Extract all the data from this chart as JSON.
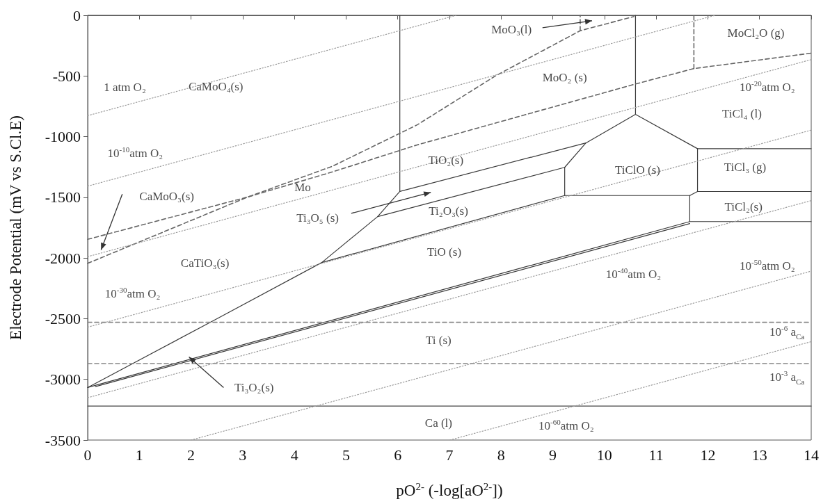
{
  "chart_data": {
    "type": "line",
    "xlabel": "pO$^{2-}$ (-log[aO$^{2-}$])",
    "ylabel": "Electrode Potential (mV vs S.Cl.E)",
    "xlim": [
      0,
      14
    ],
    "xticks": [
      0,
      1,
      2,
      3,
      4,
      5,
      6,
      7,
      8,
      9,
      10,
      11,
      12,
      13,
      14
    ],
    "ylim": [
      -3500,
      0
    ],
    "yticks": [
      -3500,
      -3000,
      -2500,
      -2000,
      -1500,
      -1000,
      -500,
      0
    ],
    "grid": false,
    "marker": "none",
    "series": [
      {
        "color": "#3a3a3a",
        "line_style": "solid",
        "x": [
          6.04,
          6.04
        ],
        "values": [
          0,
          -1451
        ]
      },
      {
        "color": "#3b3b3b",
        "line_style": "solid",
        "x": [
          0,
          2.42,
          4.53,
          5.61,
          6.04
        ],
        "values": [
          -3067,
          -2519,
          -2037,
          -1659,
          -1451
        ]
      },
      {
        "color": "#3a3a3a",
        "line_style": "solid",
        "x": [
          4.53,
          9.23,
          11.65,
          11.8
        ],
        "values": [
          -2037,
          -1485,
          -1485,
          -1452
        ]
      },
      {
        "color": "#3a3a3a",
        "line_style": "solid",
        "x": [
          5.61,
          9.23
        ],
        "values": [
          -1659,
          -1253
        ]
      },
      {
        "color": "#3a3a3a",
        "line_style": "solid",
        "x": [
          6.04,
          9.64
        ],
        "values": [
          -1451,
          -1052
        ]
      },
      {
        "color": "#3a3a3a",
        "line_style": "solid",
        "x": [
          9.23,
          9.23
        ],
        "values": [
          -1485,
          -1253
        ]
      },
      {
        "color": "#3a3a3a",
        "line_style": "solid",
        "x": [
          9.23,
          9.64,
          10.6,
          11.8
        ],
        "values": [
          -1253,
          -1052,
          -816,
          -1099
        ]
      },
      {
        "color": "#3a3a3a",
        "line_style": "solid",
        "x": [
          11.8,
          11.8
        ],
        "values": [
          -1099,
          -1452
        ]
      },
      {
        "color": "#3a3a3a",
        "line_style": "solid",
        "x": [
          10.6,
          10.6
        ],
        "values": [
          0,
          -816
        ]
      },
      {
        "color": "#3a3a3a",
        "line_style": "solid",
        "x": [
          11.8,
          14
        ],
        "values": [
          -1099,
          -1099
        ]
      },
      {
        "color": "#3a3a3a",
        "line_style": "solid",
        "x": [
          11.8,
          14
        ],
        "values": [
          -1452,
          -1452
        ]
      },
      {
        "color": "#3a3a3a",
        "line_style": "solid",
        "x": [
          11.65,
          11.65
        ],
        "values": [
          -1485,
          -1700
        ]
      },
      {
        "color": "#363636",
        "line_style": "solid",
        "x": [
          0,
          11.65,
          14
        ],
        "values": [
          -3067,
          -1700,
          -1700
        ]
      },
      {
        "color": "#383838",
        "line_style": "solid",
        "x": [
          0.15,
          11.65
        ],
        "values": [
          -3060,
          -1716
        ]
      },
      {
        "color": "#444444",
        "line_style": "solid",
        "x": [
          0,
          14
        ],
        "values": [
          -3220,
          -3220
        ]
      },
      {
        "color": "#666666",
        "line_style": "dashed",
        "x": [
          0,
          3.1,
          4.74,
          6.375,
          7.9,
          9.53,
          10.57
        ],
        "values": [
          -1846,
          -1497,
          -1243,
          -903,
          -497,
          -127,
          -10
        ]
      },
      {
        "color": "#646464",
        "line_style": "dashed",
        "x": [
          0,
          3.1,
          4.74,
          6.375,
          10.6,
          11.73,
          14
        ],
        "values": [
          -2044,
          -1497,
          -1290,
          -1068,
          -566,
          -439,
          -312
        ]
      },
      {
        "color": "#666666",
        "line_style": "dashed",
        "x": [
          9.53,
          9.53
        ],
        "values": [
          -127,
          0
        ]
      },
      {
        "color": "#666666",
        "line_style": "dashed",
        "x": [
          11.73,
          11.73
        ],
        "values": [
          -439,
          0
        ]
      },
      {
        "color": "#888888",
        "line_style": "dashed",
        "x": [
          0,
          14
        ],
        "values": [
          -2530,
          -2530
        ]
      },
      {
        "color": "#868686",
        "line_style": "dashed",
        "x": [
          0,
          14
        ],
        "values": [
          -2870,
          -2870
        ]
      },
      {
        "color": "#9a9a9a",
        "line_style": "dotted",
        "x": [
          0,
          7.13
        ],
        "values": [
          -827,
          0
        ]
      },
      {
        "color": "#9a9a9a",
        "line_style": "dotted",
        "x": [
          0,
          12.14
        ],
        "values": [
          -1408,
          0
        ]
      },
      {
        "color": "#9a9a9a",
        "line_style": "dotted",
        "x": [
          0,
          14
        ],
        "values": [
          -1989,
          -365
        ]
      },
      {
        "color": "#9a9a9a",
        "line_style": "dotted",
        "x": [
          0,
          14
        ],
        "values": [
          -2570,
          -946
        ]
      },
      {
        "color": "#9a9a9a",
        "line_style": "dotted",
        "x": [
          0,
          14
        ],
        "values": [
          -3151,
          -1527
        ]
      },
      {
        "color": "#9a9a9a",
        "line_style": "dotted",
        "x": [
          2.0,
          14
        ],
        "values": [
          -3500,
          -2108
        ]
      },
      {
        "color": "#9a9a9a",
        "line_style": "dotted",
        "x": [
          7.01,
          14
        ],
        "values": [
          -3500,
          -2689
        ]
      }
    ],
    "annotations": [
      "1 atm O₂",
      "CaMoO₄(s)",
      "10$^{-10}$atm O₂",
      "CaMoO₃(s)",
      "Mo",
      "Ti₃O₅ (s)",
      "MoO₃(l)",
      "MoO₂ (s)",
      "MoCl₂O (g)",
      "10$^{-20}$atm O₂",
      "TiCl₄ (l)",
      "TiO₂(s)",
      "TiClO (s)",
      "TiCl₃ (g)",
      "Ti₂O₃(s)",
      "TiCl₂(s)",
      "CaTiO₃(s)",
      "10$^{-30}$atm O₂",
      "TiO (s)",
      "10$^{-40}$atm O₂",
      "10$^{-50}$atm O₂",
      "Ti (s)",
      "10$^{-6}$ a$_{Ca}$",
      "10$^{-3}$ a$_{Ca}$",
      {
        "text": "Ti₃O₂(s)",
        "x": 1.96,
        "y": -2815
      },
      "Ca (l)",
      "10$^{-60}$atm O₂"
    ]
  }
}
